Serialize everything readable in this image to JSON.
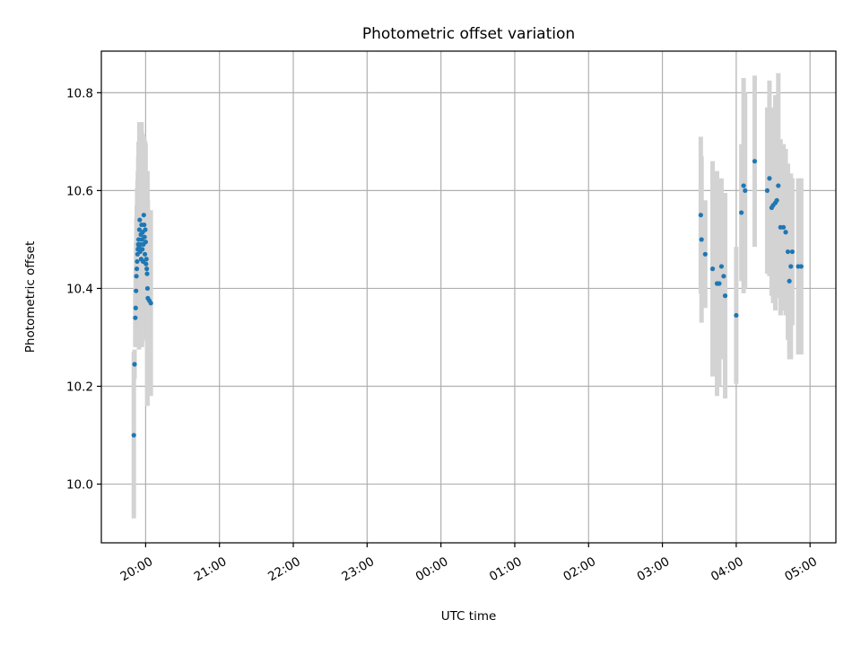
{
  "chart_data": {
    "type": "scatter",
    "title": "Photometric offset variation",
    "xlabel": "UTC time",
    "ylabel": "Photometric offset",
    "x_unit": "hours_utc_continuous",
    "xlim": [
      19.4,
      29.35
    ],
    "ylim": [
      9.88,
      10.885
    ],
    "x_ticks": [
      {
        "x": 20,
        "label": "20:00"
      },
      {
        "x": 21,
        "label": "21:00"
      },
      {
        "x": 22,
        "label": "22:00"
      },
      {
        "x": 23,
        "label": "23:00"
      },
      {
        "x": 24,
        "label": "00:00"
      },
      {
        "x": 25,
        "label": "01:00"
      },
      {
        "x": 26,
        "label": "02:00"
      },
      {
        "x": 27,
        "label": "03:00"
      },
      {
        "x": 28,
        "label": "04:00"
      },
      {
        "x": 29,
        "label": "05:00"
      }
    ],
    "y_ticks": [
      {
        "y": 10.0,
        "label": "10.0"
      },
      {
        "y": 10.2,
        "label": "10.2"
      },
      {
        "y": 10.4,
        "label": "10.4"
      },
      {
        "y": 10.6,
        "label": "10.6"
      },
      {
        "y": 10.8,
        "label": "10.8"
      }
    ],
    "grid": true,
    "point_color": "#1f77b4",
    "errorbar_color": "#d3d3d3",
    "series": [
      {
        "points": [
          {
            "x": 19.84,
            "y": 10.1,
            "err": 0.17
          },
          {
            "x": 19.85,
            "y": 10.245,
            "err": 0.03
          },
          {
            "x": 19.86,
            "y": 10.34,
            "err": 0.06
          },
          {
            "x": 19.865,
            "y": 10.36,
            "err": 0.08
          },
          {
            "x": 19.87,
            "y": 10.395,
            "err": 0.1
          },
          {
            "x": 19.875,
            "y": 10.425,
            "err": 0.12
          },
          {
            "x": 19.88,
            "y": 10.44,
            "err": 0.13
          },
          {
            "x": 19.885,
            "y": 10.455,
            "err": 0.15
          },
          {
            "x": 19.89,
            "y": 10.47,
            "err": 0.15
          },
          {
            "x": 19.895,
            "y": 10.48,
            "err": 0.16
          },
          {
            "x": 19.9,
            "y": 10.49,
            "err": 0.18
          },
          {
            "x": 19.905,
            "y": 10.5,
            "err": 0.2
          },
          {
            "x": 19.91,
            "y": 10.485,
            "err": 0.21
          },
          {
            "x": 19.915,
            "y": 10.52,
            "err": 0.22
          },
          {
            "x": 19.92,
            "y": 10.54,
            "err": 0.19
          },
          {
            "x": 19.925,
            "y": 10.475,
            "err": 0.17
          },
          {
            "x": 19.93,
            "y": 10.49,
            "err": 0.2
          },
          {
            "x": 19.935,
            "y": 10.51,
            "err": 0.23
          },
          {
            "x": 19.94,
            "y": 10.46,
            "err": 0.16
          },
          {
            "x": 19.945,
            "y": 10.53,
            "err": 0.21
          },
          {
            "x": 19.95,
            "y": 10.5,
            "err": 0.22
          },
          {
            "x": 19.955,
            "y": 10.48,
            "err": 0.19
          },
          {
            "x": 19.96,
            "y": 10.515,
            "err": 0.2
          },
          {
            "x": 19.965,
            "y": 10.455,
            "err": 0.14
          },
          {
            "x": 19.97,
            "y": 10.49,
            "err": 0.18
          },
          {
            "x": 19.975,
            "y": 10.55,
            "err": 0.14
          },
          {
            "x": 19.98,
            "y": 10.53,
            "err": 0.18
          },
          {
            "x": 19.985,
            "y": 10.505,
            "err": 0.2
          },
          {
            "x": 19.99,
            "y": 10.47,
            "err": 0.16
          },
          {
            "x": 19.995,
            "y": 10.52,
            "err": 0.18
          },
          {
            "x": 20.0,
            "y": 10.495,
            "err": 0.2
          },
          {
            "x": 20.005,
            "y": 10.45,
            "err": 0.14
          },
          {
            "x": 20.01,
            "y": 10.46,
            "err": 0.16
          },
          {
            "x": 20.015,
            "y": 10.44,
            "err": 0.13
          },
          {
            "x": 20.02,
            "y": 10.43,
            "err": 0.12
          },
          {
            "x": 20.025,
            "y": 10.4,
            "err": 0.24
          },
          {
            "x": 20.03,
            "y": 10.38,
            "err": 0.2
          },
          {
            "x": 20.05,
            "y": 10.375,
            "err": 0.16
          },
          {
            "x": 20.07,
            "y": 10.37,
            "err": 0.19
          }
        ]
      },
      {
        "points": [
          {
            "x": 27.52,
            "y": 10.55,
            "err": 0.16
          },
          {
            "x": 27.53,
            "y": 10.5,
            "err": 0.17
          },
          {
            "x": 27.58,
            "y": 10.47,
            "err": 0.11
          },
          {
            "x": 27.68,
            "y": 10.44,
            "err": 0.22
          },
          {
            "x": 27.74,
            "y": 10.41,
            "err": 0.23
          },
          {
            "x": 27.77,
            "y": 10.41,
            "err": 0.21
          },
          {
            "x": 27.8,
            "y": 10.445,
            "err": 0.18
          },
          {
            "x": 27.83,
            "y": 10.425,
            "err": 0.17
          },
          {
            "x": 27.85,
            "y": 10.385,
            "err": 0.21
          },
          {
            "x": 28.0,
            "y": 10.345,
            "err": 0.14
          },
          {
            "x": 28.07,
            "y": 10.555,
            "err": 0.14
          },
          {
            "x": 28.1,
            "y": 10.61,
            "err": 0.22
          },
          {
            "x": 28.12,
            "y": 10.6,
            "err": 0.2
          },
          {
            "x": 28.25,
            "y": 10.66,
            "err": 0.175
          },
          {
            "x": 28.42,
            "y": 10.6,
            "err": 0.17
          },
          {
            "x": 28.45,
            "y": 10.625,
            "err": 0.2
          },
          {
            "x": 28.48,
            "y": 10.565,
            "err": 0.18
          },
          {
            "x": 28.5,
            "y": 10.57,
            "err": 0.2
          },
          {
            "x": 28.53,
            "y": 10.575,
            "err": 0.22
          },
          {
            "x": 28.55,
            "y": 10.58,
            "err": 0.19
          },
          {
            "x": 28.57,
            "y": 10.61,
            "err": 0.23
          },
          {
            "x": 28.6,
            "y": 10.525,
            "err": 0.18
          },
          {
            "x": 28.64,
            "y": 10.525,
            "err": 0.17
          },
          {
            "x": 28.67,
            "y": 10.515,
            "err": 0.17
          },
          {
            "x": 28.7,
            "y": 10.475,
            "err": 0.18
          },
          {
            "x": 28.72,
            "y": 10.415,
            "err": 0.16
          },
          {
            "x": 28.74,
            "y": 10.445,
            "err": 0.19
          },
          {
            "x": 28.76,
            "y": 10.475,
            "err": 0.15
          },
          {
            "x": 28.84,
            "y": 10.445,
            "err": 0.18
          },
          {
            "x": 28.88,
            "y": 10.445,
            "err": 0.18
          }
        ]
      }
    ]
  }
}
